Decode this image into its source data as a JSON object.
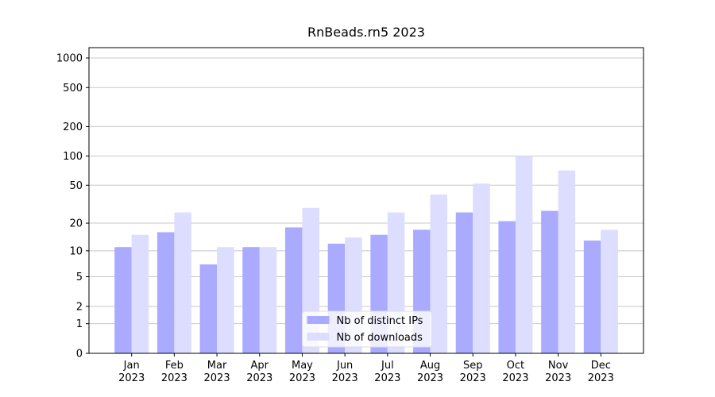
{
  "chart_data": {
    "type": "bar",
    "title": "RnBeads.rn5 2023",
    "categories": [
      "Jan\n2023",
      "Feb\n2023",
      "Mar\n2023",
      "Apr\n2023",
      "May\n2023",
      "Jun\n2023",
      "Jul\n2023",
      "Aug\n2023",
      "Sep\n2023",
      "Oct\n2023",
      "Nov\n2023",
      "Dec\n2023"
    ],
    "series": [
      {
        "name": "Nb of distinct IPs",
        "color": "#aaaaff",
        "values": [
          11,
          16,
          7,
          11,
          18,
          12,
          15,
          17,
          26,
          21,
          27,
          13
        ]
      },
      {
        "name": "Nb of downloads",
        "color": "#ddddff",
        "values": [
          15,
          26,
          11,
          11,
          29,
          14,
          26,
          40,
          52,
          100,
          71,
          17
        ]
      }
    ],
    "yscale": "log1p",
    "ylim": [
      0,
      1273
    ],
    "yticks": [
      0,
      1,
      2,
      5,
      10,
      20,
      50,
      100,
      200,
      500,
      1000
    ],
    "grid": true,
    "legend": "lower center"
  }
}
